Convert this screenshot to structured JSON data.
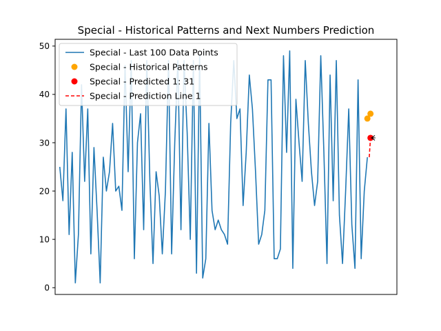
{
  "chart_data": {
    "type": "line",
    "title": "Special - Historical Patterns and Next Numbers Prediction",
    "xlabel": "",
    "ylabel": "",
    "ylim": [
      -1.4,
      51.4
    ],
    "xlim": [
      -1.5,
      108.5
    ],
    "yticks": [
      0,
      10,
      20,
      30,
      40,
      50
    ],
    "xticks_visible": false,
    "grid": false,
    "legend_position": "upper-left",
    "series": [
      {
        "name": "Special - Last 100 Data Points",
        "kind": "line",
        "color": "#1f77b4",
        "x": [
          0,
          1,
          2,
          3,
          4,
          5,
          6,
          7,
          8,
          9,
          10,
          11,
          12,
          13,
          14,
          15,
          16,
          17,
          18,
          19,
          20,
          21,
          22,
          23,
          24,
          25,
          26,
          27,
          28,
          29,
          30,
          31,
          32,
          33,
          34,
          35,
          36,
          37,
          38,
          39,
          40,
          41,
          42,
          43,
          44,
          45,
          46,
          47,
          48,
          49,
          50,
          51,
          52,
          53,
          54,
          55,
          56,
          57,
          58,
          59,
          60,
          61,
          62,
          63,
          64,
          65,
          66,
          67,
          68,
          69,
          70,
          71,
          72,
          73,
          74,
          75,
          76,
          77,
          78,
          79,
          80,
          81,
          82,
          83,
          84,
          85,
          86,
          87,
          88,
          89,
          90,
          91,
          92,
          93,
          94,
          95,
          96,
          97,
          98,
          99
        ],
        "values": [
          25,
          18,
          37,
          11,
          28,
          1,
          11,
          42,
          22,
          37,
          7,
          29,
          16,
          1,
          27,
          20,
          24,
          34,
          20,
          21,
          16,
          46,
          24,
          47,
          6,
          30,
          36,
          12,
          47,
          22,
          5,
          24,
          19,
          7,
          20,
          47,
          7,
          30,
          47,
          12,
          47,
          32,
          10,
          47,
          3,
          48,
          2,
          6,
          34,
          16,
          12,
          14,
          12,
          11,
          9,
          34,
          47,
          35,
          37,
          17,
          28,
          44,
          37,
          24,
          9,
          11,
          16,
          43,
          43,
          6,
          6,
          8,
          48,
          28,
          49,
          4,
          39,
          30,
          22,
          47,
          34,
          24,
          17,
          22,
          48,
          28,
          5,
          44,
          18,
          47,
          15,
          5,
          20,
          37,
          13,
          4,
          43,
          6,
          20,
          27
        ]
      },
      {
        "name": "Special - Historical Patterns",
        "kind": "scatter",
        "color": "#ffa500",
        "x": [
          99,
          100
        ],
        "values": [
          35,
          36
        ]
      },
      {
        "name": "Special - Predicted 1: 31",
        "kind": "scatter",
        "color": "#ff0000",
        "x": [
          100
        ],
        "values": [
          31
        ]
      },
      {
        "name": "Special - Prediction Line 1",
        "kind": "dashed-line",
        "color": "#ff0000",
        "x": [
          99.6,
          100
        ],
        "values": [
          27,
          31
        ]
      }
    ],
    "annotations": [
      {
        "kind": "arrow",
        "from_x": 101.6,
        "from_y": 31,
        "to_x": 100.3,
        "to_y": 31,
        "color": "#000000"
      }
    ]
  }
}
